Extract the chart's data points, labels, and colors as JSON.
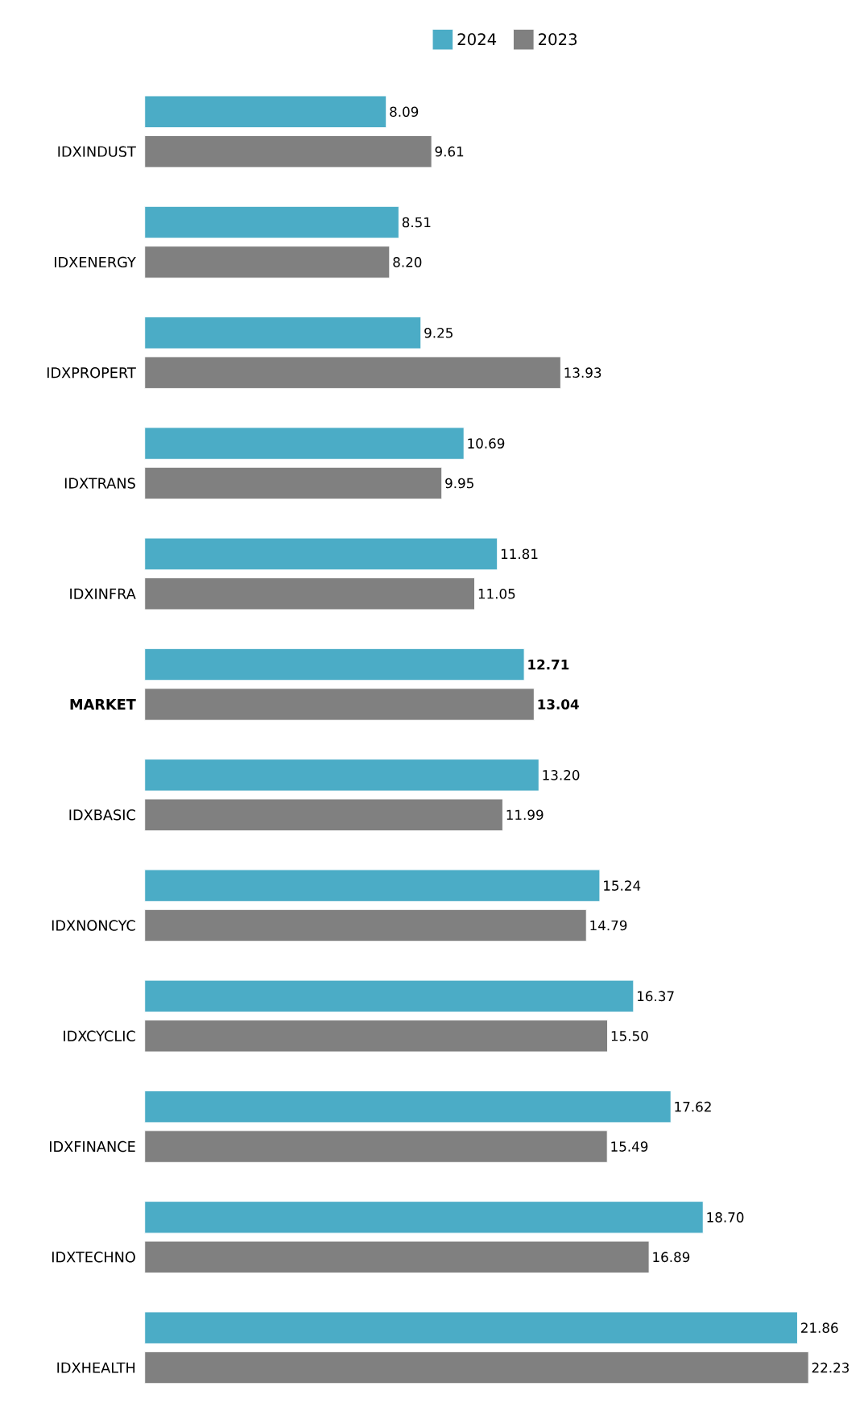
{
  "chart_data": {
    "type": "bar",
    "orientation": "horizontal",
    "legend": "top",
    "tick_labels": "y",
    "categories": [
      "IDXINDUST",
      "IDXENERGY",
      "IDXPROPERT",
      "IDXTRANS",
      "IDXINFRA",
      "**MARKET**",
      "IDXBASIC",
      "IDXNONCYC",
      "IDXCYCLIC",
      "IDXFINANCE",
      "IDXTECHNO",
      "IDXHEALTH"
    ],
    "series": [
      {
        "name": "2024",
        "color": "#4bacc6",
        "values": [
          8.09,
          8.51,
          9.25,
          10.69,
          11.81,
          12.71,
          13.2,
          15.24,
          16.37,
          17.62,
          18.7,
          21.86
        ],
        "value_labels": [
          "8.09",
          "8.51",
          "9.25",
          "10.69",
          "11.81",
          "**12.71**",
          "13.20",
          "15.24",
          "16.37",
          "17.62",
          "18.70",
          "21.86"
        ]
      },
      {
        "name": "2023",
        "color": "#808080",
        "values": [
          9.61,
          8.2,
          13.93,
          9.95,
          11.05,
          13.04,
          11.99,
          14.79,
          15.5,
          15.49,
          16.89,
          22.23
        ],
        "value_labels": [
          "9.61",
          "8.20",
          "13.93",
          "9.95",
          "11.05",
          "**13.04**",
          "11.99",
          "14.79",
          "15.50",
          "15.49",
          "16.89",
          "22.23"
        ]
      }
    ]
  }
}
